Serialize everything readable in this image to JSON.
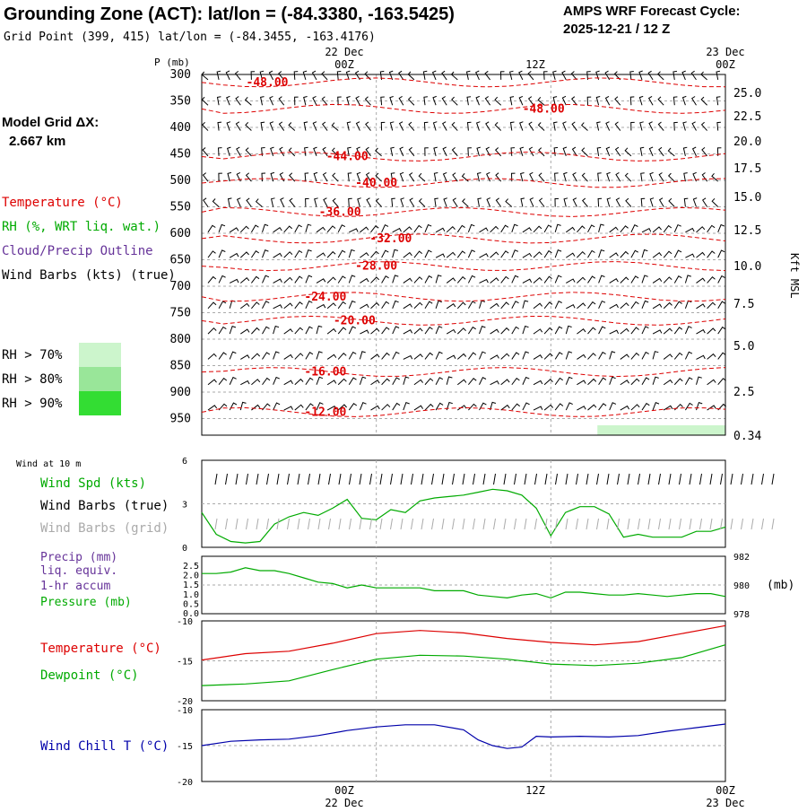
{
  "header": {
    "title": "Grounding Zone (ACT):  lat/lon = (-84.3380, -163.5425)",
    "grid_point": "Grid Point (399, 415) lat/lon = (-84.3455, -163.4176)",
    "cycle_line1": "AMPS WRF Forecast Cycle:",
    "cycle_line2": "2025-12-21 / 12  Z"
  },
  "sidebar": {
    "model_grid_line1": "Model Grid ΔX:",
    "model_grid_line2": "2.667 km",
    "legend_temperature": "Temperature (°C)",
    "legend_rh": "RH (%, WRT liq. wat.)",
    "legend_cloud": "Cloud/Precip Outline",
    "legend_wind": "Wind Barbs (kts) (true)",
    "rh_scale": [
      {
        "label": "RH > 70%",
        "color": "#ccf5cc"
      },
      {
        "label": "RH > 80%",
        "color": "#99e699"
      },
      {
        "label": "RH > 90%",
        "color": "#33dd33"
      }
    ]
  },
  "time_axis": {
    "top_labels": [
      {
        "date": "22 Dec",
        "hour": "00Z"
      },
      {
        "date": "",
        "hour": "12Z"
      },
      {
        "date": "23 Dec",
        "hour": "00Z"
      }
    ],
    "bottom_labels": [
      {
        "hour": "00Z",
        "date": "22 Dec"
      },
      {
        "hour": "12Z",
        "date": ""
      },
      {
        "hour": "00Z",
        "date": "23 Dec"
      }
    ],
    "hours_range": [
      -12,
      24
    ]
  },
  "colors": {
    "temperature": "#dd0000",
    "rh": "#00aa00",
    "wind_chill": "#0000aa",
    "grid": "#aaaaaa",
    "precip_label": "#663399",
    "grid_barb": "#aaaaaa"
  },
  "chart_data": [
    {
      "type": "cross-section",
      "pressure_axis_label": "P (mb)",
      "pressure_ticks": [
        "300",
        "350",
        "400",
        "450",
        "500",
        "550",
        "600",
        "650",
        "700",
        "750",
        "800",
        "850",
        "900",
        "950"
      ],
      "height_axis_label": "Kft MSL",
      "height_ticks": [
        "25.0",
        "22.5",
        "20.0",
        "17.5",
        "15.0",
        "12.5",
        "10.0",
        "7.5",
        "5.0",
        "2.5",
        "0.34"
      ],
      "isotherm_labels": [
        {
          "label": "-48.00",
          "t": -7.5,
          "p": 315
        },
        {
          "label": "-48.00",
          "t": 11.5,
          "p": 365
        },
        {
          "label": "-44.00",
          "t": -2.0,
          "p": 455
        },
        {
          "label": "-40.00",
          "t": 0.0,
          "p": 505
        },
        {
          "label": "-36.00",
          "t": -2.5,
          "p": 560
        },
        {
          "label": "-32.00",
          "t": 1.0,
          "p": 610
        },
        {
          "label": "-28.00",
          "t": 0.0,
          "p": 662
        },
        {
          "label": "-24.00",
          "t": -3.5,
          "p": 720
        },
        {
          "label": "-20.00",
          "t": -1.5,
          "p": 765
        },
        {
          "label": "-16.00",
          "t": -3.5,
          "p": 862
        },
        {
          "label": "-12.00",
          "t": -3.5,
          "p": 938
        }
      ]
    },
    {
      "type": "line",
      "title": "Wind at 10 m",
      "ylim": [
        0,
        6
      ],
      "y_ticks": [
        "0",
        "3",
        "6"
      ],
      "labels": [
        "Wind Spd (kts)",
        "Wind Barbs (true)",
        "Wind Barbs (grid)"
      ],
      "series": [
        {
          "name": "Wind Spd (kts)",
          "x": [
            -12,
            -11,
            -10,
            -9,
            -8,
            -7,
            -6,
            -5,
            -4,
            -3,
            -2,
            -1,
            0,
            1,
            2,
            3,
            4,
            5,
            6,
            7,
            8,
            9,
            10,
            11,
            12,
            13,
            14,
            15,
            16,
            17,
            18,
            19,
            20,
            21,
            22,
            23,
            24
          ],
          "values": [
            2.4,
            0.9,
            0.4,
            0.3,
            0.4,
            1.6,
            2.1,
            2.4,
            2.2,
            2.7,
            3.3,
            2.0,
            1.9,
            2.6,
            2.4,
            3.2,
            3.4,
            3.5,
            3.6,
            3.8,
            4.0,
            3.9,
            3.6,
            2.7,
            0.8,
            2.4,
            2.8,
            2.8,
            2.3,
            0.7,
            0.9,
            0.7,
            0.7,
            0.7,
            1.1,
            1.1,
            1.4
          ]
        }
      ]
    },
    {
      "type": "line",
      "labels": [
        "Precip (mm)",
        "liq. equiv.",
        "1-hr accum",
        "Pressure (mb)"
      ],
      "precip_ticks": [
        "0.0",
        "0.5",
        "1.0",
        "1.5",
        "2.0",
        "2.5"
      ],
      "pressure_ticks": [
        "978",
        "980",
        "982"
      ],
      "pressure_unit": "(mb)",
      "series": [
        {
          "name": "Pressure (mb)",
          "x": [
            -12,
            -11,
            -10,
            -9,
            -8,
            -7,
            -6,
            -5,
            -4,
            -3,
            -2,
            -1,
            0,
            1,
            2,
            3,
            4,
            5,
            6,
            7,
            8,
            9,
            10,
            11,
            12,
            13,
            14,
            15,
            16,
            17,
            18,
            19,
            20,
            21,
            22,
            23,
            24
          ],
          "values": [
            980.8,
            980.8,
            980.9,
            981.2,
            981.0,
            981.0,
            980.8,
            980.5,
            980.2,
            980.1,
            979.8,
            980.0,
            979.8,
            979.8,
            979.8,
            979.8,
            979.6,
            979.6,
            979.6,
            979.3,
            979.2,
            979.1,
            979.3,
            979.4,
            979.1,
            979.5,
            979.5,
            979.4,
            979.3,
            979.3,
            979.4,
            979.3,
            979.2,
            979.3,
            979.4,
            979.4,
            979.2
          ]
        }
      ]
    },
    {
      "type": "line",
      "ylim": [
        -20,
        -10
      ],
      "y_ticks": [
        "-10",
        "-15",
        "-20"
      ],
      "labels": [
        "Temperature (°C)",
        "Dewpoint (°C)"
      ],
      "series": [
        {
          "name": "Temperature (°C)",
          "x": [
            -12,
            -9,
            -6,
            -3,
            0,
            3,
            6,
            9,
            12,
            15,
            18,
            21,
            24
          ],
          "values": [
            -14.9,
            -14.1,
            -13.8,
            -12.8,
            -11.6,
            -11.2,
            -11.5,
            -12.2,
            -12.7,
            -13.0,
            -12.6,
            -11.6,
            -10.6
          ]
        },
        {
          "name": "Dewpoint (°C)",
          "x": [
            -12,
            -9,
            -6,
            -3,
            0,
            3,
            6,
            9,
            12,
            15,
            18,
            21,
            24
          ],
          "values": [
            -18.1,
            -17.9,
            -17.5,
            -16.1,
            -14.8,
            -14.3,
            -14.4,
            -14.8,
            -15.4,
            -15.6,
            -15.3,
            -14.6,
            -13.0
          ]
        }
      ]
    },
    {
      "type": "line",
      "ylim": [
        -20,
        -10
      ],
      "y_ticks": [
        "-10",
        "-15",
        "-20"
      ],
      "labels": [
        "Wind Chill T (°C)"
      ],
      "series": [
        {
          "name": "Wind Chill T (°C)",
          "x": [
            -12,
            -10,
            -8,
            -6,
            -4,
            -2,
            0,
            2,
            4,
            6,
            7,
            8,
            9,
            10,
            11,
            12,
            14,
            16,
            18,
            20,
            22,
            24
          ],
          "values": [
            -15.0,
            -14.4,
            -14.2,
            -14.1,
            -13.6,
            -12.9,
            -12.4,
            -12.1,
            -12.1,
            -12.8,
            -14.2,
            -15.0,
            -15.4,
            -15.2,
            -13.7,
            -13.8,
            -13.7,
            -13.8,
            -13.6,
            -13.0,
            -12.5,
            -12.0
          ]
        }
      ]
    }
  ]
}
